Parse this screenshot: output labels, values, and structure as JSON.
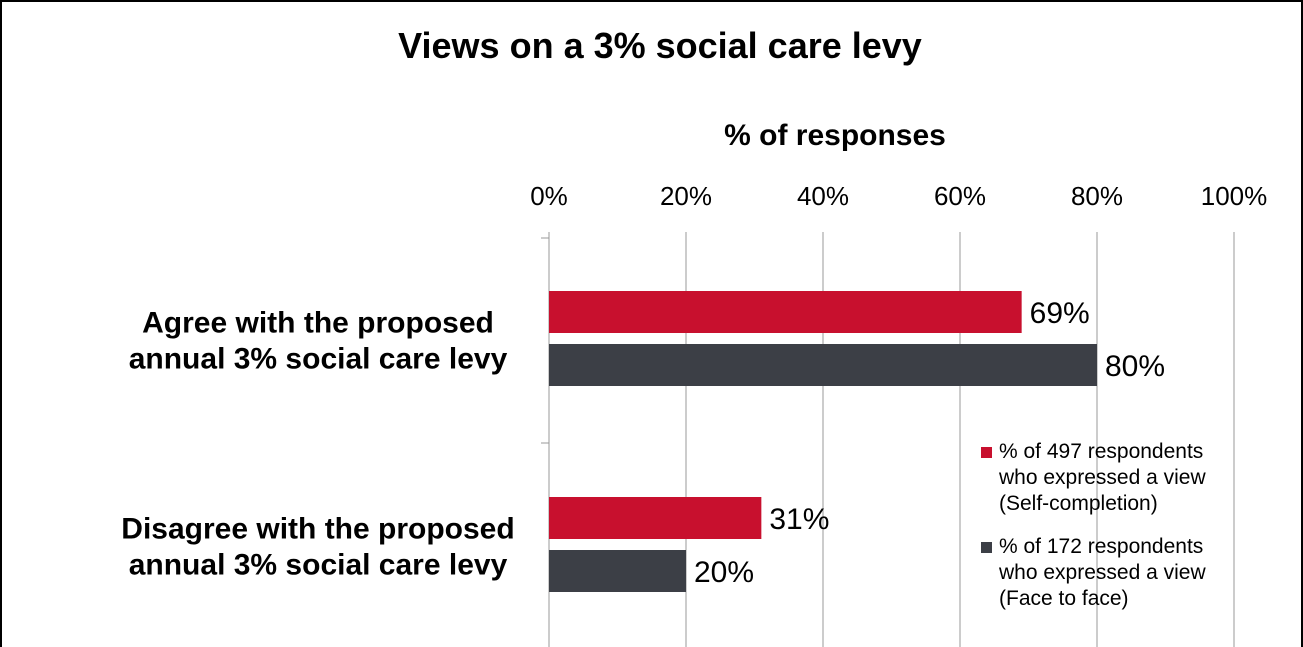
{
  "chart_data": {
    "type": "bar",
    "orientation": "horizontal",
    "title": "Views on a 3% social care levy",
    "xlabel": "% of responses",
    "ylabel": "",
    "xlim": [
      0,
      100
    ],
    "x_ticks": [
      "0%",
      "20%",
      "40%",
      "60%",
      "80%",
      "100%"
    ],
    "x_tick_values": [
      0,
      20,
      40,
      60,
      80,
      100
    ],
    "categories": [
      [
        "Agree with the proposed",
        "annual 3% social care levy"
      ],
      [
        "Disagree with the proposed",
        "annual 3% social care levy"
      ]
    ],
    "series": [
      {
        "name": [
          "% of 497 respondents",
          "who expressed a view",
          "(Self-completion)"
        ],
        "color": "#c8102e",
        "values": [
          69,
          31
        ],
        "labels": [
          "69%",
          "31%"
        ]
      },
      {
        "name": [
          "% of 172 respondents",
          "who expressed a view",
          "(Face to face)"
        ],
        "color": "#3c3f46",
        "values": [
          80,
          20
        ],
        "labels": [
          "80%",
          "20%"
        ]
      }
    ],
    "grid": true,
    "legend_position": "bottom-right"
  }
}
